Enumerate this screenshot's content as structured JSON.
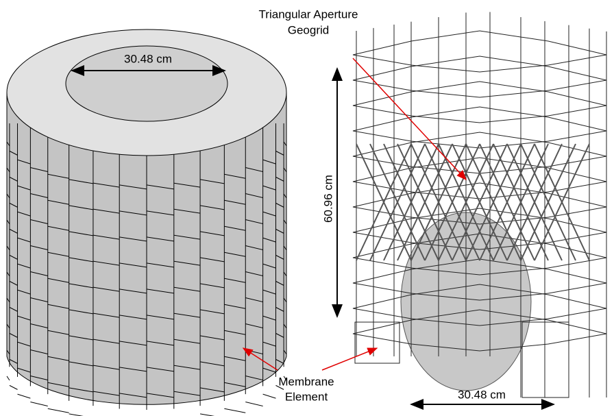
{
  "left_model": {
    "diameter_label": "30.48 cm"
  },
  "right_model": {
    "height_label": "60.96 cm",
    "diameter_label": "30.48 cm"
  },
  "annotations": {
    "geogrid": [
      "Triangular Aperture",
      "Geogrid"
    ],
    "membrane": [
      "Membrane",
      "Element"
    ]
  }
}
